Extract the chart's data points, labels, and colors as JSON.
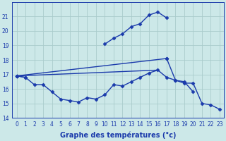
{
  "xlabel": "Graphe des températures (°c)",
  "hours": [
    0,
    1,
    2,
    3,
    4,
    5,
    6,
    7,
    8,
    9,
    10,
    11,
    12,
    13,
    14,
    15,
    16,
    17,
    18,
    19,
    20,
    21,
    22,
    23
  ],
  "line_top": [
    16.9,
    16.8,
    null,
    null,
    null,
    null,
    null,
    null,
    null,
    null,
    19.1,
    19.5,
    19.8,
    20.3,
    20.5,
    21.1,
    21.3,
    20.9,
    null,
    null,
    null,
    null,
    null,
    null
  ],
  "line_mid": [
    16.9,
    null,
    null,
    null,
    null,
    null,
    null,
    null,
    null,
    null,
    null,
    null,
    null,
    null,
    null,
    null,
    null,
    18.1,
    16.6,
    16.5,
    15.8,
    null,
    null,
    null
  ],
  "line_bot": [
    16.9,
    16.8,
    16.3,
    16.3,
    15.8,
    15.3,
    15.2,
    15.1,
    15.4,
    15.3,
    15.6,
    16.3,
    16.2,
    16.5,
    16.8,
    17.1,
    17.3,
    16.8,
    16.6,
    16.4,
    16.4,
    15.0,
    14.9,
    14.6
  ],
  "ylim": [
    14,
    22
  ],
  "yticks": [
    14,
    15,
    16,
    17,
    18,
    19,
    20,
    21
  ],
  "bg_color": "#cce8e8",
  "grid_color": "#aacccc",
  "line_color": "#1a3aab",
  "marker": "D",
  "markersize": 2.5,
  "linewidth": 1.0,
  "xlabel_fontsize": 7,
  "tick_fontsize": 5.5
}
